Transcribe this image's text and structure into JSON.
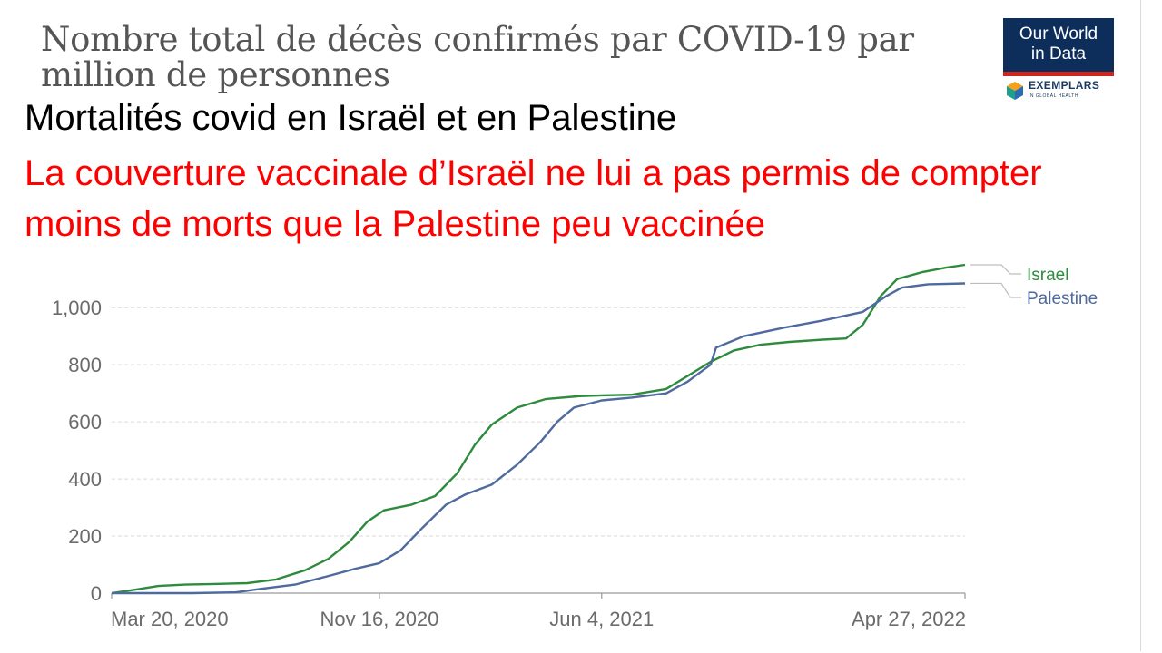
{
  "header": {
    "chart_title": "Nombre total de décès confirmés par COVID-19 par million de personnes",
    "heading": "Mortalités covid en Israël et en Palestine",
    "subheading": "La couverture vaccinale d’Israël ne lui a pas permis de compter moins de morts que la Palestine peu vaccinée"
  },
  "logo": {
    "line1": "Our World",
    "line2": "in Data",
    "partner": "EXEMPLARS",
    "partner_sub": "IN GLOBAL HEALTH",
    "colors": {
      "box": "#0d2e5b",
      "stripe": "#ce261e"
    }
  },
  "chart_data": {
    "type": "line",
    "title": "Nombre total de décès confirmés par COVID-19 par million de personnes",
    "xlabel": "",
    "ylabel": "",
    "xlim": [
      "2020-03-20",
      "2022-04-27"
    ],
    "ylim": [
      0,
      1150
    ],
    "y_ticks": [
      0,
      200,
      400,
      600,
      800,
      1000
    ],
    "y_tick_labels": [
      "0",
      "200",
      "400",
      "600",
      "800",
      "1,000"
    ],
    "x_ticks": [
      "2020-03-20",
      "2020-11-16",
      "2021-06-04",
      "2022-04-27"
    ],
    "x_tick_labels": [
      "Mar 20, 2020",
      "Nov 16, 2020",
      "Jun 4, 2021",
      "Apr 27, 2022"
    ],
    "grid": true,
    "legend": "right-end labels",
    "series": [
      {
        "name": "Israel",
        "color": "#2e8b3e",
        "points": [
          [
            "2020-03-20",
            0
          ],
          [
            "2020-04-10",
            12
          ],
          [
            "2020-05-01",
            25
          ],
          [
            "2020-05-25",
            30
          ],
          [
            "2020-06-20",
            32
          ],
          [
            "2020-07-20",
            35
          ],
          [
            "2020-08-15",
            48
          ],
          [
            "2020-09-10",
            80
          ],
          [
            "2020-10-01",
            120
          ],
          [
            "2020-10-20",
            180
          ],
          [
            "2020-11-05",
            250
          ],
          [
            "2020-11-20",
            290
          ],
          [
            "2020-12-15",
            310
          ],
          [
            "2021-01-05",
            340
          ],
          [
            "2021-01-25",
            420
          ],
          [
            "2021-02-10",
            520
          ],
          [
            "2021-02-25",
            590
          ],
          [
            "2021-03-20",
            650
          ],
          [
            "2021-04-15",
            680
          ],
          [
            "2021-05-15",
            690
          ],
          [
            "2021-06-04",
            693
          ],
          [
            "2021-07-01",
            695
          ],
          [
            "2021-08-01",
            715
          ],
          [
            "2021-08-20",
            760
          ],
          [
            "2021-09-10",
            810
          ],
          [
            "2021-10-01",
            850
          ],
          [
            "2021-10-25",
            870
          ],
          [
            "2021-11-20",
            880
          ],
          [
            "2021-12-20",
            888
          ],
          [
            "2022-01-10",
            892
          ],
          [
            "2022-01-25",
            940
          ],
          [
            "2022-02-10",
            1040
          ],
          [
            "2022-02-25",
            1100
          ],
          [
            "2022-03-20",
            1125
          ],
          [
            "2022-04-10",
            1140
          ],
          [
            "2022-04-27",
            1150
          ]
        ]
      },
      {
        "name": "Palestine",
        "color": "#4e6a9e",
        "points": [
          [
            "2020-03-20",
            0
          ],
          [
            "2020-06-01",
            0
          ],
          [
            "2020-07-10",
            3
          ],
          [
            "2020-08-01",
            15
          ],
          [
            "2020-09-01",
            30
          ],
          [
            "2020-10-01",
            60
          ],
          [
            "2020-10-25",
            85
          ],
          [
            "2020-11-16",
            105
          ],
          [
            "2020-12-05",
            150
          ],
          [
            "2020-12-25",
            230
          ],
          [
            "2021-01-15",
            310
          ],
          [
            "2021-02-01",
            345
          ],
          [
            "2021-02-25",
            380
          ],
          [
            "2021-03-20",
            450
          ],
          [
            "2021-04-10",
            530
          ],
          [
            "2021-04-25",
            600
          ],
          [
            "2021-05-10",
            650
          ],
          [
            "2021-06-04",
            675
          ],
          [
            "2021-07-01",
            685
          ],
          [
            "2021-08-01",
            700
          ],
          [
            "2021-08-20",
            740
          ],
          [
            "2021-09-10",
            800
          ],
          [
            "2021-09-15",
            860
          ],
          [
            "2021-10-10",
            900
          ],
          [
            "2021-11-15",
            930
          ],
          [
            "2021-12-20",
            955
          ],
          [
            "2022-01-25",
            985
          ],
          [
            "2022-02-15",
            1040
          ],
          [
            "2022-03-01",
            1070
          ],
          [
            "2022-03-25",
            1082
          ],
          [
            "2022-04-27",
            1085
          ]
        ]
      }
    ]
  }
}
